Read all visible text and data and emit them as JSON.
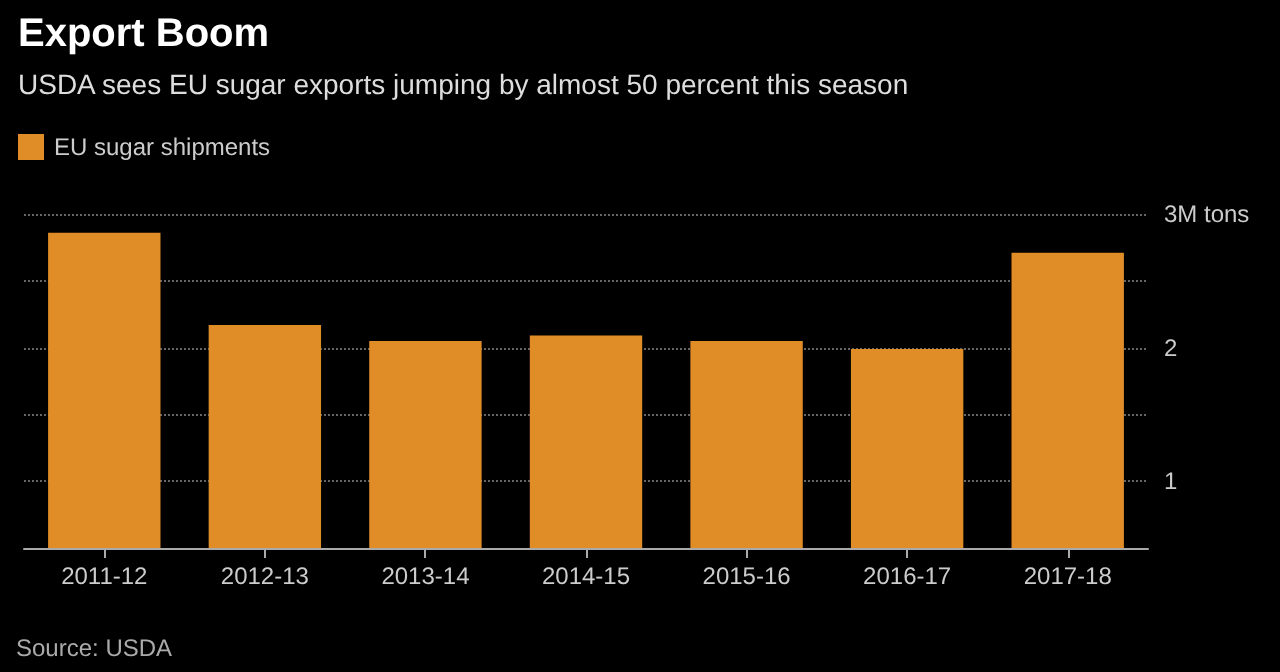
{
  "chart_data": {
    "type": "bar",
    "title": "Export Boom",
    "subtitle": "USDA sees EU sugar exports jumping by almost 50 percent this season",
    "categories": [
      "2011-12",
      "2012-13",
      "2013-14",
      "2014-15",
      "2015-16",
      "2016-17",
      "2017-18"
    ],
    "series": [
      {
        "name": "EU sugar shipments",
        "color": "#e08c27",
        "values": [
          2.86,
          2.17,
          2.05,
          2.09,
          2.05,
          1.99,
          2.71
        ]
      }
    ],
    "ylim": [
      0.5,
      3
    ],
    "yticks": [
      {
        "value": 0.5,
        "label": null
      },
      1,
      {
        "value": 1.5,
        "label": null
      },
      2,
      {
        "value": 2.5,
        "label": null
      },
      {
        "value": 3,
        "label": "3M tons"
      }
    ],
    "grid": "y",
    "legend": "top left",
    "annotations": [
      "Source: USDA"
    ]
  }
}
